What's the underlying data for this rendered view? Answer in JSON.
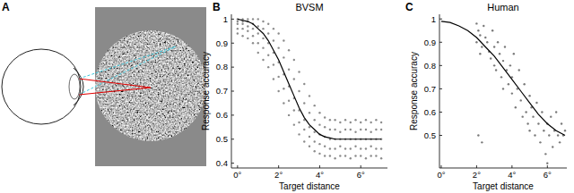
{
  "panel_a": {
    "label": "A"
  },
  "chart_data": [
    {
      "type": "scatter",
      "panel_label": "B",
      "title": "BVSM",
      "x_label": "Target distance",
      "y_label": "Response accuracy",
      "xlim": [
        -0.3,
        7.3
      ],
      "xticks": [
        {
          "value": 0,
          "label": "0°"
        },
        {
          "value": 2,
          "label": "2°"
        },
        {
          "value": 4,
          "label": "4°"
        },
        {
          "value": 6,
          "label": "6°"
        }
      ],
      "ylim": [
        0.38,
        1.02
      ],
      "yticks": [
        0.4,
        0.5,
        0.6,
        0.7,
        0.8,
        0.9,
        1
      ],
      "grid": false,
      "series": [
        {
          "type": "scatter",
          "color": "#8c8c8c",
          "marker": "dot",
          "x": [
            0,
            0.25,
            0.5,
            0.75,
            1,
            1.25,
            1.5,
            1.75,
            2,
            2.25,
            2.5,
            2.75,
            3,
            3.25,
            3.5,
            3.75,
            4,
            4.25,
            4.5,
            4.75,
            5,
            5.25,
            5.5,
            5.75,
            6,
            6.25,
            6.5,
            6.75,
            7
          ],
          "values": [
            0.94,
            0.93,
            0.92,
            0.9,
            0.86,
            0.83,
            0.8,
            0.75,
            0.7,
            0.65,
            0.6,
            0.56,
            0.52,
            0.49,
            0.47,
            0.45,
            0.44,
            0.43,
            0.43,
            0.42,
            0.43,
            0.43,
            0.42,
            0.43,
            0.43,
            0.42,
            0.43,
            0.43,
            0.42
          ]
        },
        {
          "type": "scatter",
          "color": "#8c8c8c",
          "marker": "dot",
          "x": [
            0,
            0.25,
            0.5,
            0.75,
            1,
            1.25,
            1.5,
            1.75,
            2,
            2.25,
            2.5,
            2.75,
            3,
            3.25,
            3.5,
            3.75,
            4,
            4.25,
            4.5,
            4.75,
            5,
            5.25,
            5.5,
            5.75,
            6,
            6.25,
            6.5,
            6.75,
            7
          ],
          "values": [
            0.96,
            0.96,
            0.95,
            0.93,
            0.9,
            0.88,
            0.85,
            0.81,
            0.76,
            0.71,
            0.66,
            0.62,
            0.57,
            0.54,
            0.51,
            0.49,
            0.48,
            0.47,
            0.46,
            0.46,
            0.47,
            0.46,
            0.46,
            0.47,
            0.46,
            0.46,
            0.47,
            0.46,
            0.46
          ]
        },
        {
          "type": "scatter",
          "color": "#8c8c8c",
          "marker": "dot",
          "x": [
            0,
            0.25,
            0.5,
            0.75,
            1,
            1.25,
            1.5,
            1.75,
            2,
            2.25,
            2.5,
            2.75,
            3,
            3.25,
            3.5,
            3.75,
            4,
            4.25,
            4.5,
            4.75,
            5,
            5.25,
            5.5,
            5.75,
            6,
            6.25,
            6.5,
            6.75,
            7
          ],
          "values": [
            0.98,
            0.98,
            0.97,
            0.96,
            0.94,
            0.92,
            0.9,
            0.86,
            0.82,
            0.77,
            0.72,
            0.67,
            0.62,
            0.58,
            0.55,
            0.53,
            0.52,
            0.51,
            0.5,
            0.5,
            0.5,
            0.5,
            0.5,
            0.5,
            0.5,
            0.5,
            0.5,
            0.5,
            0.5
          ]
        },
        {
          "type": "scatter",
          "color": "#8c8c8c",
          "marker": "dot",
          "x": [
            0,
            0.25,
            0.5,
            0.75,
            1,
            1.25,
            1.5,
            1.75,
            2,
            2.25,
            2.5,
            2.75,
            3,
            3.25,
            3.5,
            3.75,
            4,
            4.25,
            4.5,
            4.75,
            5,
            5.25,
            5.5,
            5.75,
            6,
            6.25,
            6.5,
            6.75,
            7
          ],
          "values": [
            0.99,
            0.99,
            0.99,
            0.98,
            0.97,
            0.96,
            0.94,
            0.91,
            0.88,
            0.84,
            0.79,
            0.75,
            0.7,
            0.65,
            0.61,
            0.58,
            0.56,
            0.55,
            0.54,
            0.54,
            0.53,
            0.54,
            0.54,
            0.53,
            0.54,
            0.54,
            0.53,
            0.54,
            0.54
          ]
        },
        {
          "type": "scatter",
          "color": "#8c8c8c",
          "marker": "dot",
          "x": [
            0,
            0.25,
            0.5,
            0.75,
            1,
            1.25,
            1.5,
            1.75,
            2,
            2.25,
            2.5,
            2.75,
            3,
            3.25,
            3.5,
            3.75,
            4,
            4.25,
            4.5,
            4.75,
            5,
            5.25,
            5.5,
            5.75,
            6,
            6.25,
            6.5,
            6.75,
            7
          ],
          "values": [
            1.0,
            1.0,
            1.0,
            1.0,
            1.0,
            0.99,
            0.98,
            0.96,
            0.94,
            0.91,
            0.87,
            0.83,
            0.78,
            0.73,
            0.68,
            0.64,
            0.61,
            0.59,
            0.58,
            0.58,
            0.57,
            0.58,
            0.57,
            0.58,
            0.57,
            0.58,
            0.57,
            0.58,
            0.57
          ]
        },
        {
          "type": "line",
          "color": "#000000",
          "line_style": "solid",
          "x": [
            0,
            0.25,
            0.5,
            0.75,
            1,
            1.25,
            1.5,
            1.75,
            2,
            2.25,
            2.5,
            2.75,
            3,
            3.25,
            3.5,
            3.75,
            4,
            4.25,
            4.5,
            4.75,
            5,
            5.25,
            5.5,
            5.75,
            6,
            6.25,
            6.5,
            6.75,
            7
          ],
          "values": [
            1.0,
            0.995,
            0.99,
            0.98,
            0.96,
            0.94,
            0.91,
            0.87,
            0.83,
            0.78,
            0.73,
            0.68,
            0.63,
            0.59,
            0.56,
            0.54,
            0.52,
            0.51,
            0.505,
            0.5,
            0.5,
            0.5,
            0.5,
            0.5,
            0.5,
            0.5,
            0.5,
            0.5,
            0.5
          ]
        }
      ]
    },
    {
      "type": "scatter",
      "panel_label": "C",
      "title": "Human",
      "x_label": "Target distance",
      "y_label": "Response accuracy",
      "xlim": [
        -0.1,
        7.1
      ],
      "xticks": [
        {
          "value": 0,
          "label": "0°"
        },
        {
          "value": 2,
          "label": "2°"
        },
        {
          "value": 4,
          "label": "4°"
        },
        {
          "value": 6,
          "label": "6°"
        }
      ],
      "ylim": [
        0.36,
        1.02
      ],
      "yticks": [
        0.5,
        0.6,
        0.7,
        0.8,
        0.9,
        1
      ],
      "grid": false,
      "series": [
        {
          "type": "scatter",
          "color": "#7a7a7a",
          "marker": "dot",
          "x": [
            2.0,
            2.1,
            2.2,
            2.0,
            2.3,
            2.2,
            2.4,
            2.5,
            2.1,
            2.3,
            2.6,
            2.7,
            2.8,
            2.9,
            3.0,
            3.0,
            3.1,
            3.2,
            3.3,
            3.4,
            3.5,
            3.5,
            3.6,
            3.7,
            3.8,
            3.9,
            4.0,
            4.0,
            4.1,
            4.2,
            4.3,
            4.4,
            4.5,
            4.6,
            4.7,
            4.8,
            4.9,
            5.0,
            5.0,
            5.1,
            5.2,
            5.3,
            5.4,
            5.5,
            5.6,
            5.7,
            5.8,
            5.9,
            6.0,
            6.0,
            6.1,
            6.2,
            6.3,
            6.4,
            6.5,
            6.6,
            6.7,
            6.8,
            6.9,
            7.0
          ],
          "values": [
            0.98,
            0.95,
            0.93,
            0.9,
            0.88,
            0.85,
            0.97,
            0.92,
            0.5,
            0.47,
            0.9,
            0.86,
            0.83,
            0.95,
            0.88,
            0.8,
            0.78,
            0.9,
            0.85,
            0.75,
            0.82,
            0.7,
            0.88,
            0.78,
            0.72,
            0.8,
            0.68,
            0.75,
            0.85,
            0.62,
            0.7,
            0.78,
            0.65,
            0.58,
            0.72,
            0.6,
            0.55,
            0.67,
            0.52,
            0.62,
            0.58,
            0.5,
            0.64,
            0.55,
            0.47,
            0.6,
            0.52,
            0.42,
            0.55,
            0.38,
            0.5,
            0.58,
            0.45,
            0.52,
            0.6,
            0.5,
            0.47,
            0.55,
            0.5,
            0.52
          ]
        },
        {
          "type": "line",
          "color": "#000000",
          "line_style": "solid",
          "x": [
            0,
            0.5,
            1,
            1.5,
            2,
            2.5,
            3,
            3.5,
            4,
            4.5,
            5,
            5.5,
            6,
            6.5,
            7
          ],
          "values": [
            0.99,
            0.985,
            0.97,
            0.95,
            0.92,
            0.88,
            0.84,
            0.79,
            0.74,
            0.69,
            0.64,
            0.59,
            0.55,
            0.52,
            0.5
          ]
        }
      ]
    }
  ]
}
